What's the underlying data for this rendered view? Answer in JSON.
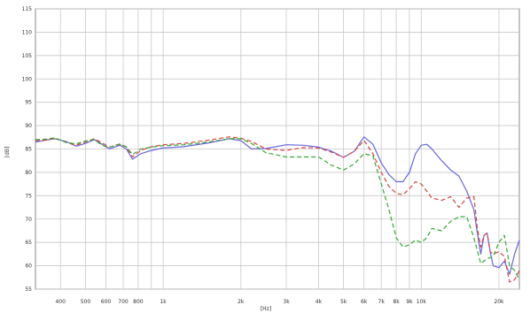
{
  "chart_data": {
    "type": "line",
    "title": "",
    "xlabel": "[Hz]",
    "ylabel": "[dB]",
    "x_scale": "log",
    "xlim": [
      320,
      24000
    ],
    "ylim": [
      55,
      115
    ],
    "grid": true,
    "x_ticks": [
      400,
      500,
      600,
      700,
      800,
      1000,
      2000,
      3000,
      4000,
      5000,
      6000,
      7000,
      8000,
      9000,
      10000,
      20000
    ],
    "x_tick_labels": [
      "400",
      "500",
      "600",
      "700",
      "800",
      "1k",
      "2k",
      "3k",
      "4k",
      "5k",
      "6k",
      "7k",
      "8k",
      "9k",
      "10k",
      "20k"
    ],
    "x_minor_gridlines": [
      900
    ],
    "y_ticks": [
      55,
      60,
      65,
      70,
      75,
      80,
      85,
      90,
      95,
      100,
      105,
      110,
      115
    ],
    "y_tick_labels": [
      "55",
      "60",
      "65",
      "70",
      "75",
      "80",
      "85",
      "90",
      "95",
      "100",
      "105",
      "110",
      "115"
    ],
    "series": [
      {
        "color": "#6666dd",
        "style": "solid",
        "points": [
          [
            320,
            86.5
          ],
          [
            350,
            86.9
          ],
          [
            380,
            87.2
          ],
          [
            420,
            86.6
          ],
          [
            460,
            85.6
          ],
          [
            500,
            86.2
          ],
          [
            540,
            87.0
          ],
          [
            580,
            86.0
          ],
          [
            620,
            85.0
          ],
          [
            680,
            85.8
          ],
          [
            720,
            85.0
          ],
          [
            760,
            82.8
          ],
          [
            820,
            84.0
          ],
          [
            900,
            84.7
          ],
          [
            1000,
            85.2
          ],
          [
            1200,
            85.5
          ],
          [
            1500,
            86.3
          ],
          [
            1800,
            87.2
          ],
          [
            2000,
            86.8
          ],
          [
            2200,
            85.0
          ],
          [
            2500,
            85.1
          ],
          [
            3000,
            85.9
          ],
          [
            3500,
            85.8
          ],
          [
            4000,
            85.4
          ],
          [
            4500,
            84.5
          ],
          [
            5000,
            83.2
          ],
          [
            5500,
            84.5
          ],
          [
            6000,
            87.6
          ],
          [
            6500,
            86.0
          ],
          [
            7000,
            82.0
          ],
          [
            7500,
            79.5
          ],
          [
            8000,
            78.0
          ],
          [
            8500,
            78.0
          ],
          [
            9000,
            80.0
          ],
          [
            9500,
            84.0
          ],
          [
            10000,
            85.8
          ],
          [
            10500,
            86.0
          ],
          [
            11000,
            85.0
          ],
          [
            12000,
            82.5
          ],
          [
            13000,
            80.5
          ],
          [
            14000,
            79.2
          ],
          [
            15000,
            76.0
          ],
          [
            16000,
            72.0
          ],
          [
            16500,
            67.0
          ],
          [
            17000,
            62.5
          ],
          [
            17500,
            66.5
          ],
          [
            18000,
            67.0
          ],
          [
            18500,
            63.0
          ],
          [
            19000,
            60.0
          ],
          [
            20000,
            59.6
          ],
          [
            21000,
            61.0
          ],
          [
            22000,
            58.2
          ],
          [
            23000,
            62.5
          ],
          [
            24000,
            65.5
          ]
        ]
      },
      {
        "color": "#dd4444",
        "style": "dashed",
        "points": [
          [
            320,
            86.8
          ],
          [
            350,
            86.9
          ],
          [
            380,
            87.3
          ],
          [
            420,
            86.5
          ],
          [
            460,
            85.8
          ],
          [
            500,
            86.5
          ],
          [
            540,
            87.2
          ],
          [
            580,
            86.3
          ],
          [
            620,
            85.4
          ],
          [
            680,
            86.1
          ],
          [
            720,
            85.4
          ],
          [
            760,
            83.3
          ],
          [
            820,
            84.7
          ],
          [
            900,
            85.5
          ],
          [
            1000,
            85.9
          ],
          [
            1200,
            86.2
          ],
          [
            1500,
            86.9
          ],
          [
            1800,
            87.6
          ],
          [
            2000,
            87.3
          ],
          [
            2200,
            86.6
          ],
          [
            2500,
            85.0
          ],
          [
            3000,
            84.7
          ],
          [
            3500,
            85.3
          ],
          [
            4000,
            85.2
          ],
          [
            4500,
            84.3
          ],
          [
            5000,
            83.2
          ],
          [
            5500,
            84.5
          ],
          [
            6000,
            86.8
          ],
          [
            6500,
            84.0
          ],
          [
            7000,
            80.0
          ],
          [
            7500,
            77.0
          ],
          [
            8000,
            75.5
          ],
          [
            8500,
            75.2
          ],
          [
            9000,
            76.5
          ],
          [
            9500,
            78.0
          ],
          [
            10000,
            77.5
          ],
          [
            10500,
            76.0
          ],
          [
            11000,
            74.5
          ],
          [
            12000,
            74.0
          ],
          [
            13000,
            74.8
          ],
          [
            14000,
            72.5
          ],
          [
            15000,
            74.5
          ],
          [
            16000,
            74.8
          ],
          [
            16500,
            68.0
          ],
          [
            17000,
            64.0
          ],
          [
            17500,
            66.5
          ],
          [
            18000,
            67.0
          ],
          [
            18500,
            63.0
          ],
          [
            19000,
            62.5
          ],
          [
            20000,
            63.0
          ],
          [
            21000,
            62.0
          ],
          [
            22000,
            56.5
          ],
          [
            23000,
            57.0
          ],
          [
            24000,
            59.0
          ]
        ]
      },
      {
        "color": "#33aa33",
        "style": "dashed",
        "points": [
          [
            320,
            87.0
          ],
          [
            350,
            87.1
          ],
          [
            380,
            87.4
          ],
          [
            420,
            86.4
          ],
          [
            460,
            86.1
          ],
          [
            500,
            86.7
          ],
          [
            540,
            87.0
          ],
          [
            580,
            85.8
          ],
          [
            620,
            85.4
          ],
          [
            680,
            86.0
          ],
          [
            720,
            85.5
          ],
          [
            760,
            83.8
          ],
          [
            820,
            85.0
          ],
          [
            900,
            85.4
          ],
          [
            1000,
            85.7
          ],
          [
            1200,
            85.9
          ],
          [
            1500,
            86.5
          ],
          [
            1800,
            87.2
          ],
          [
            2000,
            87.2
          ],
          [
            2200,
            86.2
          ],
          [
            2500,
            84.2
          ],
          [
            3000,
            83.3
          ],
          [
            3500,
            83.3
          ],
          [
            4000,
            83.3
          ],
          [
            4500,
            81.5
          ],
          [
            5000,
            80.5
          ],
          [
            5500,
            81.8
          ],
          [
            6000,
            84.0
          ],
          [
            6500,
            83.5
          ],
          [
            7000,
            77.5
          ],
          [
            7500,
            72.0
          ],
          [
            8000,
            66.0
          ],
          [
            8500,
            64.0
          ],
          [
            9000,
            64.5
          ],
          [
            9500,
            65.5
          ],
          [
            10000,
            65.0
          ],
          [
            10500,
            66.0
          ],
          [
            11000,
            68.0
          ],
          [
            12000,
            67.5
          ],
          [
            13000,
            69.5
          ],
          [
            14000,
            70.5
          ],
          [
            15000,
            70.5
          ],
          [
            16000,
            66.0
          ],
          [
            17000,
            60.5
          ],
          [
            18000,
            61.5
          ],
          [
            19000,
            62.0
          ],
          [
            20000,
            65.0
          ],
          [
            21000,
            66.5
          ],
          [
            22000,
            60.0
          ],
          [
            23000,
            59.0
          ],
          [
            24000,
            57.0
          ]
        ]
      }
    ]
  }
}
